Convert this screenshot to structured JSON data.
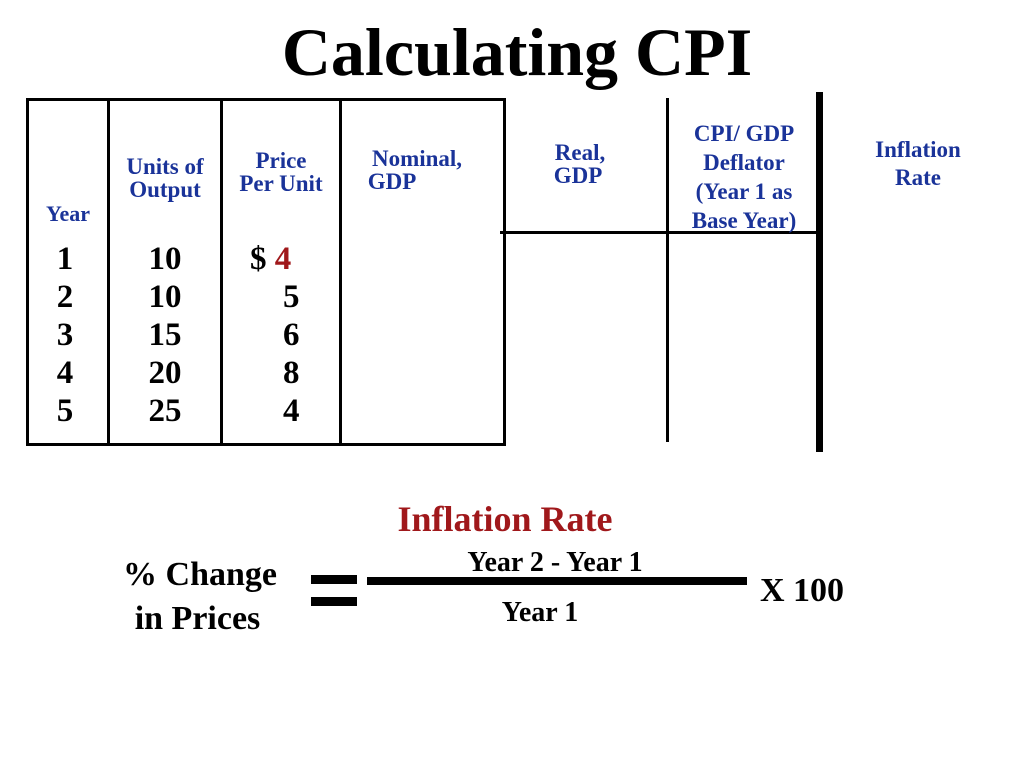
{
  "title": "Calculating CPI",
  "table": {
    "headers": {
      "year": "Year",
      "units": [
        "Units of",
        "Output"
      ],
      "price": [
        "Price",
        "Per Unit"
      ],
      "nominal": [
        "Nominal,",
        "GDP"
      ],
      "real": [
        "Real,",
        "GDP"
      ],
      "cpi": [
        "CPI/ GDP",
        "Deflator",
        "(Year 1 as",
        "Base Year)"
      ],
      "inflation": [
        "Inflation",
        "Rate"
      ]
    },
    "years": [
      "1",
      "2",
      "3",
      "4",
      "5"
    ],
    "units": [
      "10",
      "10",
      "15",
      "20",
      "25"
    ],
    "price_prefix": "$",
    "prices": [
      "4",
      "5",
      "6",
      "8",
      "4"
    ],
    "colors": {
      "header": "#1a3399",
      "highlight": "#a0181b"
    }
  },
  "formula": {
    "heading": "Inflation Rate",
    "left_line1": "% Change",
    "left_line2": "in Prices",
    "equals": "=",
    "numerator": "Year 2 - Year 1",
    "denominator": "Year 1",
    "multiplier": "X 100"
  }
}
